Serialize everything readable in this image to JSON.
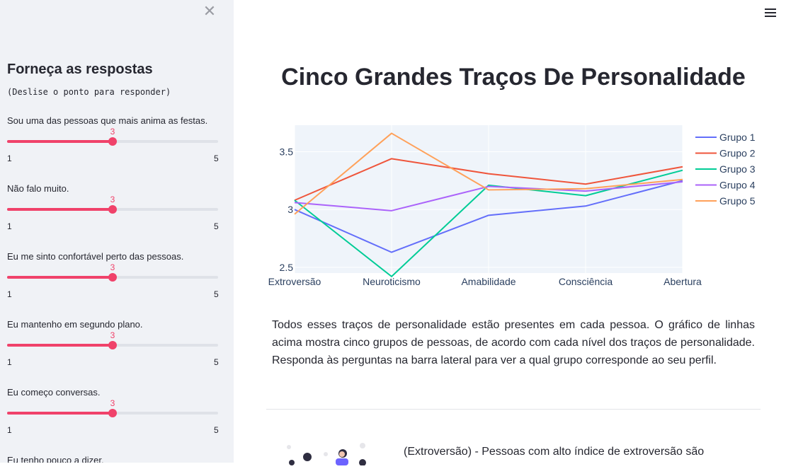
{
  "sidebar": {
    "close_icon": "close-icon",
    "title": "Forneça as respostas",
    "subtitle": "(Deslise o ponto para responder)",
    "questions": [
      {
        "label": "Sou uma das pessoas que mais anima as festas.",
        "value": "3",
        "min": "1",
        "max": "5",
        "level": 0.5
      },
      {
        "label": "Não falo muito.",
        "value": "3",
        "min": "1",
        "max": "5",
        "level": 0.5
      },
      {
        "label": "Eu me sinto confortável perto das pessoas.",
        "value": "3",
        "min": "1",
        "max": "5",
        "level": 0.5
      },
      {
        "label": "Eu mantenho em segundo plano.",
        "value": "3",
        "min": "1",
        "max": "5",
        "level": 0.5
      },
      {
        "label": "Eu começo conversas.",
        "value": "3",
        "min": "1",
        "max": "5",
        "level": 0.5
      }
    ],
    "partial_question": "Eu tenho pouco a dizer."
  },
  "header": {
    "menu_icon": "hamburger-menu-icon"
  },
  "main": {
    "title": "Cinco Grandes Traços De Personalidade",
    "description": "Todos esses traços de personalidade estão presentes em cada pessoa. O gráfico de linhas acima mostra cinco grupos de pessoas, de acordo com cada nível dos traços de personalidade. Responda às perguntas na barra lateral para ver a qual grupo corresponde ao seu perfil.",
    "trait_text": "(Extroversão) - Pessoas com alto índice de extroversão são",
    "illustration_icon": "people-illustration-icon"
  },
  "chart_data": {
    "type": "line",
    "categories": [
      "Extroversão",
      "Neuroticismo",
      "Amabilidade",
      "Consciência",
      "Abertura"
    ],
    "ylim": [
      2.45,
      3.73
    ],
    "yticks": [
      "2.5",
      "3",
      "3.5"
    ],
    "grid": true,
    "legend_position": "right",
    "series": [
      {
        "name": "Grupo 1",
        "color": "#636efa",
        "values": [
          3.0,
          2.63,
          2.95,
          3.03,
          3.25
        ]
      },
      {
        "name": "Grupo 2",
        "color": "#ef553b",
        "values": [
          3.08,
          3.44,
          3.31,
          3.22,
          3.37
        ]
      },
      {
        "name": "Grupo 3",
        "color": "#00cc96",
        "values": [
          3.08,
          2.42,
          3.21,
          3.12,
          3.34
        ]
      },
      {
        "name": "Grupo 4",
        "color": "#ab63fa",
        "values": [
          3.06,
          2.99,
          3.2,
          3.16,
          3.24
        ]
      },
      {
        "name": "Grupo 5",
        "color": "#ffa15a",
        "values": [
          2.96,
          3.66,
          3.17,
          3.18,
          3.26
        ]
      }
    ]
  }
}
